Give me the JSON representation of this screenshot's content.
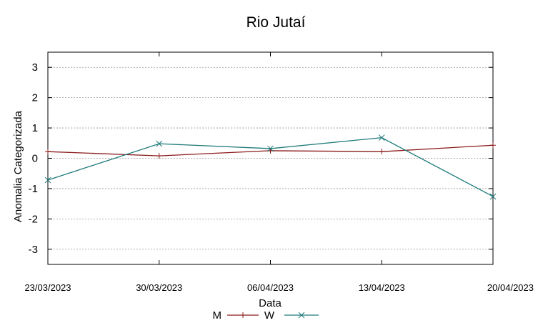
{
  "chart_data": {
    "type": "line",
    "title": "Rio Jutaí",
    "xlabel": "Data",
    "ylabel": "Anomalia Categorizada",
    "categories": [
      "23/03/2023",
      "30/03/2023",
      "06/04/2023",
      "13/04/2023",
      "20/04/2023"
    ],
    "ylim": [
      -3.5,
      3.5
    ],
    "yticks": [
      "3",
      "2",
      "1",
      "0",
      "-1",
      "-2",
      "-3"
    ],
    "ytick_values": [
      3,
      2,
      1,
      0,
      -1,
      -2,
      -3
    ],
    "grid": true,
    "legend_position": "bottom-center",
    "series": [
      {
        "name": "M",
        "color": "#8b1a1a",
        "marker": "plus",
        "values": [
          0.22,
          0.08,
          0.25,
          0.22,
          0.43
        ]
      },
      {
        "name": "W",
        "color": "#1f7a7a",
        "marker": "x",
        "values": [
          -0.72,
          0.48,
          0.32,
          0.68,
          -1.26
        ]
      }
    ]
  }
}
